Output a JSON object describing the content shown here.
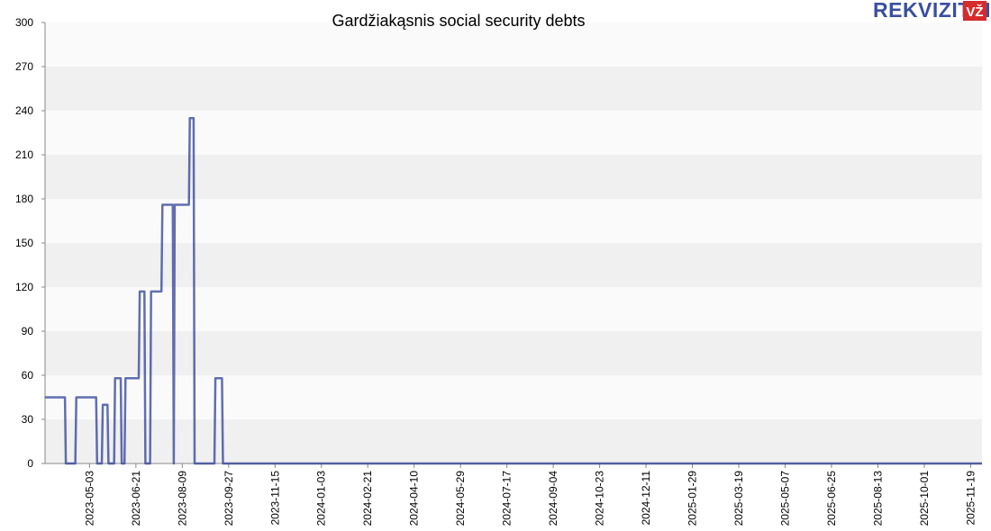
{
  "logo": {
    "word": "REKVIZITAI",
    "badge": "VŽ",
    "color": "#3a4fa0",
    "badge_color": "#d62b2b"
  },
  "chart_data": {
    "type": "line",
    "title": "Gardžiakąsnis social security debts",
    "xlabel": "",
    "ylabel": "",
    "ylim": [
      0,
      300
    ],
    "y_ticks": [
      0,
      30,
      60,
      90,
      120,
      150,
      180,
      210,
      240,
      270,
      300
    ],
    "x_range": [
      "2023-03-17",
      "2025-12-01"
    ],
    "x_ticks": [
      "2023-05-03",
      "2023-06-21",
      "2023-08-09",
      "2023-09-27",
      "2023-11-15",
      "2024-01-03",
      "2024-02-21",
      "2024-04-10",
      "2024-05-29",
      "2024-07-17",
      "2024-09-04",
      "2024-10-23",
      "2024-12-11",
      "2025-01-29",
      "2025-03-19",
      "2025-05-07",
      "2025-06-25",
      "2025-08-13",
      "2025-10-01",
      "2025-11-19"
    ],
    "grid": true,
    "line_color": "#2e3f96",
    "band_colors": [
      "#f0f0f0",
      "#fafafa"
    ],
    "series": [
      {
        "values": [
          [
            "2023-03-17",
            45
          ],
          [
            "2023-04-07",
            45
          ],
          [
            "2023-04-08",
            0
          ],
          [
            "2023-04-18",
            0
          ],
          [
            "2023-04-19",
            45
          ],
          [
            "2023-05-10",
            45
          ],
          [
            "2023-05-11",
            0
          ],
          [
            "2023-05-16",
            0
          ],
          [
            "2023-05-17",
            40
          ],
          [
            "2023-05-22",
            40
          ],
          [
            "2023-05-23",
            0
          ],
          [
            "2023-05-29",
            0
          ],
          [
            "2023-05-30",
            58
          ],
          [
            "2023-06-05",
            58
          ],
          [
            "2023-06-06",
            0
          ],
          [
            "2023-06-09",
            0
          ],
          [
            "2023-06-10",
            58
          ],
          [
            "2023-06-24",
            58
          ],
          [
            "2023-06-25",
            117
          ],
          [
            "2023-06-30",
            117
          ],
          [
            "2023-07-01",
            0
          ],
          [
            "2023-07-06",
            0
          ],
          [
            "2023-07-07",
            117
          ],
          [
            "2023-07-18",
            117
          ],
          [
            "2023-07-19",
            176
          ],
          [
            "2023-07-30",
            176
          ],
          [
            "2023-07-31",
            0
          ],
          [
            "2023-08-01",
            176
          ],
          [
            "2023-08-16",
            176
          ],
          [
            "2023-08-17",
            235
          ],
          [
            "2023-08-21",
            235
          ],
          [
            "2023-08-22",
            0
          ],
          [
            "2023-09-12",
            0
          ],
          [
            "2023-09-13",
            58
          ],
          [
            "2023-09-20",
            58
          ],
          [
            "2023-09-21",
            0
          ],
          [
            "2025-12-01",
            0
          ]
        ]
      }
    ]
  }
}
